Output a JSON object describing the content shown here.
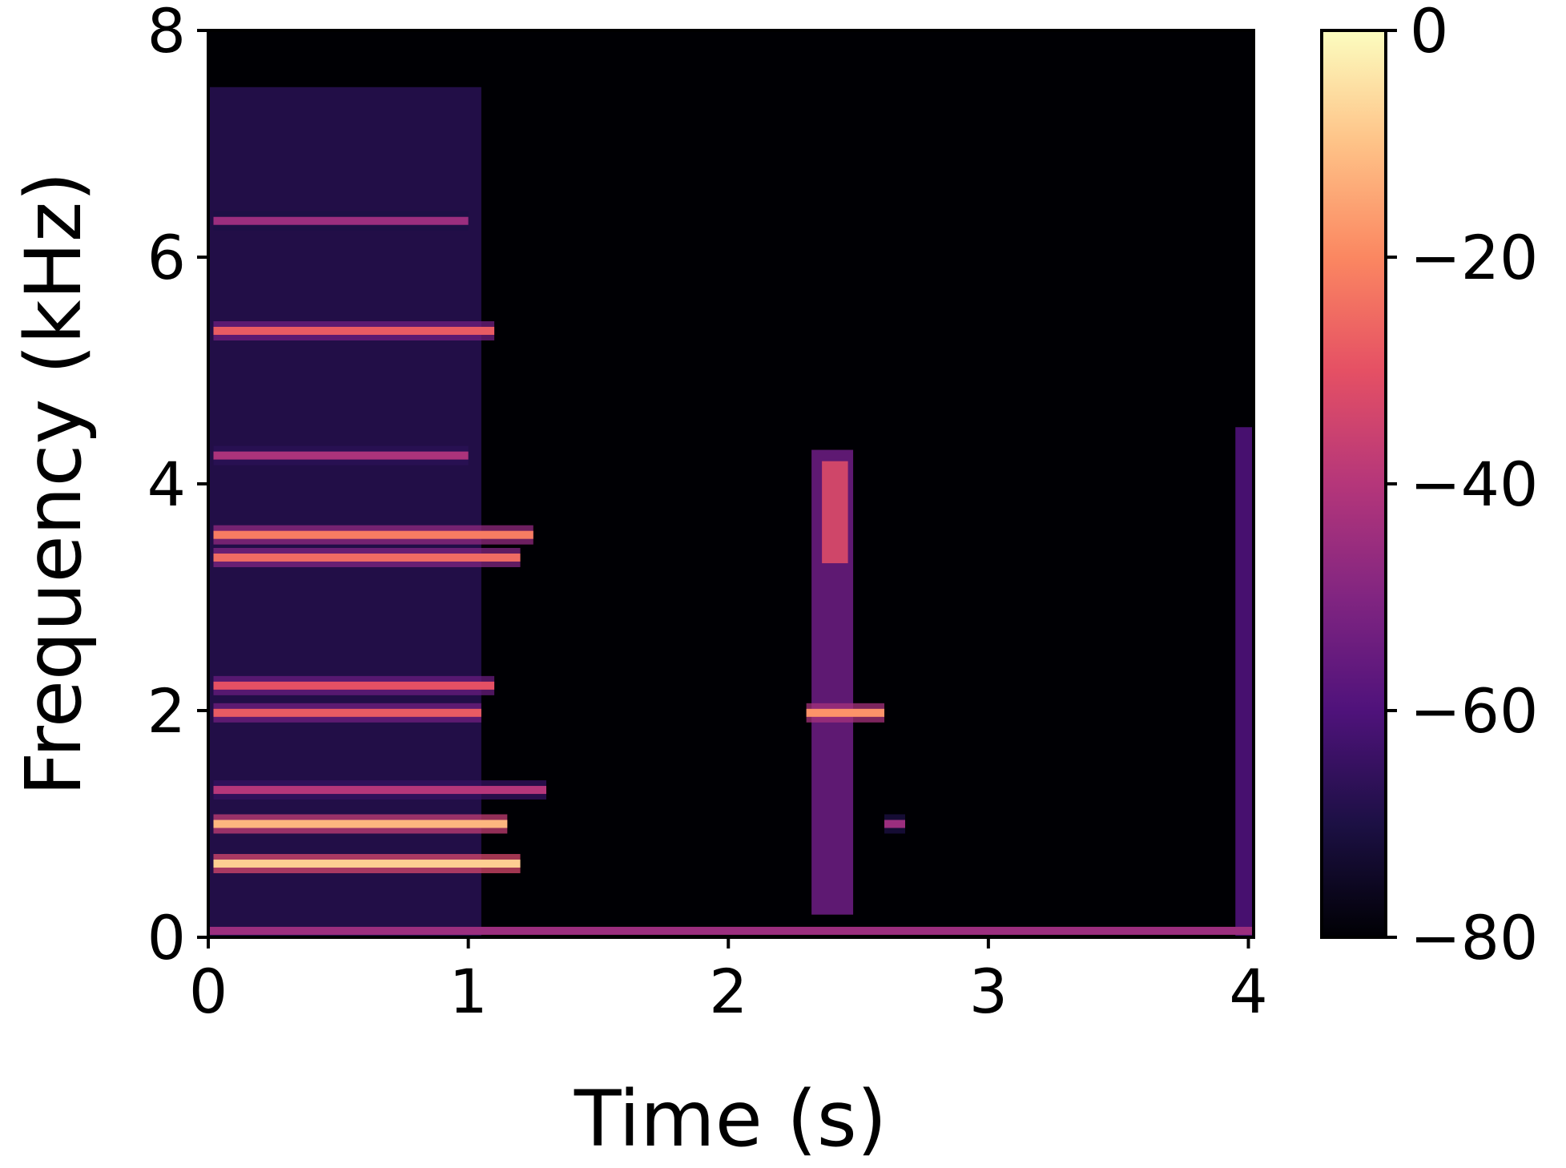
{
  "chart_data": {
    "type": "heatmap",
    "subtype": "spectrogram",
    "title": "",
    "xlabel": "Time (s)",
    "ylabel": "Frequency (kHz)",
    "xlim": [
      0,
      4.02
    ],
    "ylim": [
      0,
      8
    ],
    "x_ticks": [
      0,
      1,
      2,
      3,
      4
    ],
    "y_ticks": [
      0,
      2,
      4,
      6,
      8
    ],
    "colormap": "magma",
    "colorbar": {
      "range": [
        -80,
        0
      ],
      "ticks": [
        0,
        -20,
        -40,
        -60,
        -80
      ],
      "tick_labels": [
        "0",
        "−20",
        "−40",
        "−60",
        "−80"
      ]
    },
    "grid": false,
    "background_level_db": -80,
    "harmonic_bands": [
      {
        "t_start": 0.02,
        "t_end": 1.2,
        "freq_khz": 0.65,
        "level_db": -8
      },
      {
        "t_start": 0.02,
        "t_end": 1.15,
        "freq_khz": 1.0,
        "level_db": -12
      },
      {
        "t_start": 0.02,
        "t_end": 1.3,
        "freq_khz": 1.3,
        "level_db": -40
      },
      {
        "t_start": 0.02,
        "t_end": 1.05,
        "freq_khz": 1.98,
        "level_db": -28
      },
      {
        "t_start": 0.02,
        "t_end": 1.1,
        "freq_khz": 2.22,
        "level_db": -30
      },
      {
        "t_start": 0.02,
        "t_end": 1.2,
        "freq_khz": 3.35,
        "level_db": -25
      },
      {
        "t_start": 0.02,
        "t_end": 1.25,
        "freq_khz": 3.55,
        "level_db": -22
      },
      {
        "t_start": 0.02,
        "t_end": 1.0,
        "freq_khz": 4.25,
        "level_db": -42
      },
      {
        "t_start": 0.02,
        "t_end": 1.1,
        "freq_khz": 5.35,
        "level_db": -28
      },
      {
        "t_start": 0.02,
        "t_end": 1.0,
        "freq_khz": 6.32,
        "level_db": -45
      },
      {
        "t_start": 2.3,
        "t_end": 2.6,
        "freq_khz": 1.98,
        "level_db": -18
      },
      {
        "t_start": 2.6,
        "t_end": 2.68,
        "freq_khz": 1.0,
        "level_db": -45
      }
    ],
    "broadband_events": [
      {
        "t_start": 0.0,
        "t_end": 1.05,
        "f_low_khz": 0.0,
        "f_high_khz": 7.5,
        "level_db": -68
      },
      {
        "t_start": 2.32,
        "t_end": 2.48,
        "f_low_khz": 0.2,
        "f_high_khz": 4.3,
        "level_db": -55
      },
      {
        "t_start": 2.36,
        "t_end": 2.46,
        "f_low_khz": 3.3,
        "f_high_khz": 4.2,
        "level_db": -32
      },
      {
        "t_start": 3.95,
        "t_end": 4.02,
        "f_low_khz": 0.0,
        "f_high_khz": 4.5,
        "level_db": -60
      }
    ],
    "low_frequency_floor": {
      "freq_khz": 0.05,
      "t_start": 0.0,
      "t_end": 4.02,
      "level_db": -45
    }
  }
}
